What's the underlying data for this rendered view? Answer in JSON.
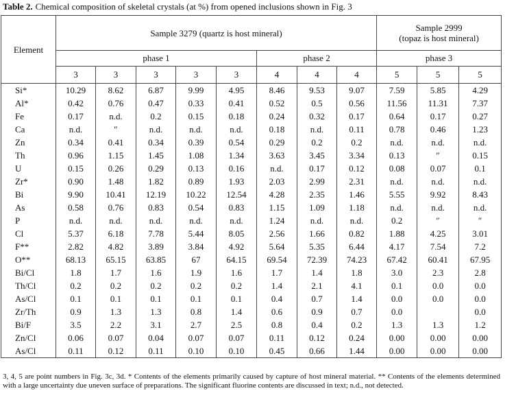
{
  "title": {
    "label": "Table 2.",
    "caption": "Chemical composition of skeletal crystals (at %) from opened inclusions shown in Fig. 3"
  },
  "table": {
    "element_header": "Element",
    "samples": [
      "Sample 3279 (quartz is host mineral)",
      "Sample 2999\n(topaz is host mineral)"
    ],
    "phases": [
      "phase 1",
      "phase 2",
      "phase 3"
    ],
    "points": [
      "3",
      "3",
      "3",
      "3",
      "3",
      "4",
      "4",
      "4",
      "5",
      "5",
      "5"
    ],
    "rows": [
      {
        "element": "Si*",
        "values": [
          "10.29",
          "8.62",
          "6.87",
          "9.99",
          "4.95",
          "8.46",
          "9.53",
          "9.07",
          "7.59",
          "5.85",
          "4.29"
        ]
      },
      {
        "element": "Al*",
        "values": [
          "0.42",
          "0.76",
          "0.47",
          "0.33",
          "0.41",
          "0.52",
          "0.5",
          "0.56",
          "11.56",
          "11.31",
          "7.37"
        ]
      },
      {
        "element": "Fe",
        "values": [
          "0.17",
          "n.d.",
          "0.2",
          "0.15",
          "0.18",
          "0.24",
          "0.32",
          "0.17",
          "0.64",
          "0.17",
          "0.27"
        ]
      },
      {
        "element": "Ca",
        "values": [
          "n.d.",
          "″",
          "n.d.",
          "n.d.",
          "n.d.",
          "0.18",
          "n.d.",
          "0.11",
          "0.78",
          "0.46",
          "1.23"
        ]
      },
      {
        "element": "Zn",
        "values": [
          "0.34",
          "0.41",
          "0.34",
          "0.39",
          "0.54",
          "0.29",
          "0.2",
          "0.2",
          "n.d.",
          "n.d.",
          "n.d."
        ]
      },
      {
        "element": "Th",
        "values": [
          "0.96",
          "1.15",
          "1.45",
          "1.08",
          "1.34",
          "3.63",
          "3.45",
          "3.34",
          "0.13",
          "″",
          "0.15"
        ]
      },
      {
        "element": "U",
        "values": [
          "0.15",
          "0.26",
          "0.29",
          "0.13",
          "0.16",
          "n.d.",
          "0.17",
          "0.12",
          "0.08",
          "0.07",
          "0.1"
        ]
      },
      {
        "element": "Zr*",
        "values": [
          "0.90",
          "1.48",
          "1.82",
          "0.89",
          "1.93",
          "2.03",
          "2.99",
          "2.31",
          "n.d.",
          "n.d.",
          "n.d."
        ]
      },
      {
        "element": "Bi",
        "values": [
          "9.90",
          "10.41",
          "12.19",
          "10.22",
          "12.54",
          "4.28",
          "2.35",
          "1.46",
          "5.55",
          "9.92",
          "8.43"
        ]
      },
      {
        "element": "As",
        "values": [
          "0.58",
          "0.76",
          "0.83",
          "0.54",
          "0.83",
          "1.15",
          "1.09",
          "1.18",
          "n.d.",
          "n.d.",
          "n.d."
        ]
      },
      {
        "element": "P",
        "values": [
          "n.d.",
          "n.d.",
          "n.d.",
          "n.d.",
          "n.d.",
          "1.24",
          "n.d.",
          "n.d.",
          "0.2",
          "″",
          "″"
        ]
      },
      {
        "element": "Cl",
        "values": [
          "5.37",
          "6.18",
          "7.78",
          "5.44",
          "8.05",
          "2.56",
          "1.66",
          "0.82",
          "1.88",
          "4.25",
          "3.01"
        ]
      },
      {
        "element": "F**",
        "values": [
          "2.82",
          "4.82",
          "3.89",
          "3.84",
          "4.92",
          "5.64",
          "5.35",
          "6.44",
          "4.17",
          "7.54",
          "7.2"
        ]
      },
      {
        "element": "O**",
        "values": [
          "68.13",
          "65.15",
          "63.85",
          "67",
          "64.15",
          "69.54",
          "72.39",
          "74.23",
          "67.42",
          "60.41",
          "67.95"
        ]
      },
      {
        "element": "Bi/Cl",
        "values": [
          "1.8",
          "1.7",
          "1.6",
          "1.9",
          "1.6",
          "1.7",
          "1.4",
          "1.8",
          "3.0",
          "2.3",
          "2.8"
        ]
      },
      {
        "element": "Th/Cl",
        "values": [
          "0.2",
          "0.2",
          "0.2",
          "0.2",
          "0.2",
          "1.4",
          "2.1",
          "4.1",
          "0.1",
          "0.0",
          "0.0"
        ]
      },
      {
        "element": "As/Cl",
        "values": [
          "0.1",
          "0.1",
          "0.1",
          "0.1",
          "0.1",
          "0.4",
          "0.7",
          "1.4",
          "0.0",
          "0.0",
          "0.0"
        ]
      },
      {
        "element": "Zr/Th",
        "values": [
          "0.9",
          "1.3",
          "1.3",
          "0.8",
          "1.4",
          "0.6",
          "0.9",
          "0.7",
          "0.0",
          null,
          "0.0"
        ]
      },
      {
        "element": "Bi/F",
        "values": [
          "3.5",
          "2.2",
          "3.1",
          "2.7",
          "2.5",
          "0.8",
          "0.4",
          "0.2",
          "1.3",
          "1.3",
          "1.2"
        ]
      },
      {
        "element": "Zn/Cl",
        "values": [
          "0.06",
          "0.07",
          "0.04",
          "0.07",
          "0.07",
          "0.11",
          "0.12",
          "0.24",
          "0.00",
          "0.00",
          "0.00"
        ]
      },
      {
        "element": "As/Cl",
        "values": [
          "0.11",
          "0.12",
          "0.11",
          "0.10",
          "0.10",
          "0.45",
          "0.66",
          "1.44",
          "0.00",
          "0.00",
          "0.00"
        ]
      }
    ]
  },
  "footnote": "3, 4, 5 are point numbers in Fig. 3c, 3d. * Contents of the elements primarily caused by capture of host mineral material. ** Contents of the elements determined with a large uncertainty due uneven surface of preparations. The significant fluorine contents are discussed in text; n.d., not detected."
}
